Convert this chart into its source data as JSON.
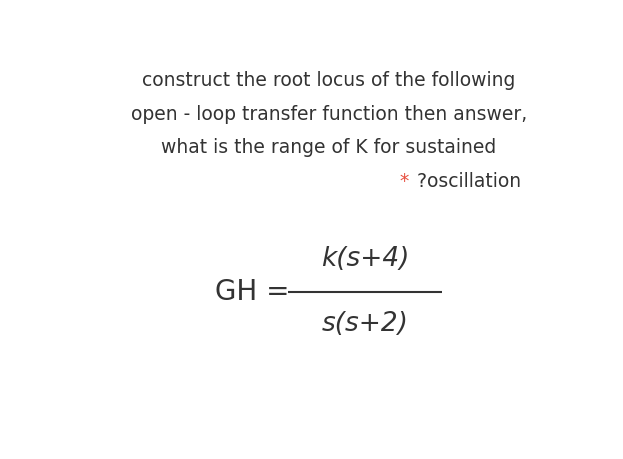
{
  "background_color": "#ffffff",
  "line1": "construct the root locus of the following",
  "line2": "open - loop transfer function then answer,",
  "line3": "what is the range of K for sustained",
  "line4_star": "*",
  "line4_text": " ?oscillation",
  "gh_label": "GH =",
  "numerator": "k(s+4)",
  "denominator": "s(s+2)",
  "text_color": "#333333",
  "star_color": "#e74c3c",
  "text_fontsize": 13.5,
  "math_fontsize": 19,
  "gh_fontsize": 19
}
